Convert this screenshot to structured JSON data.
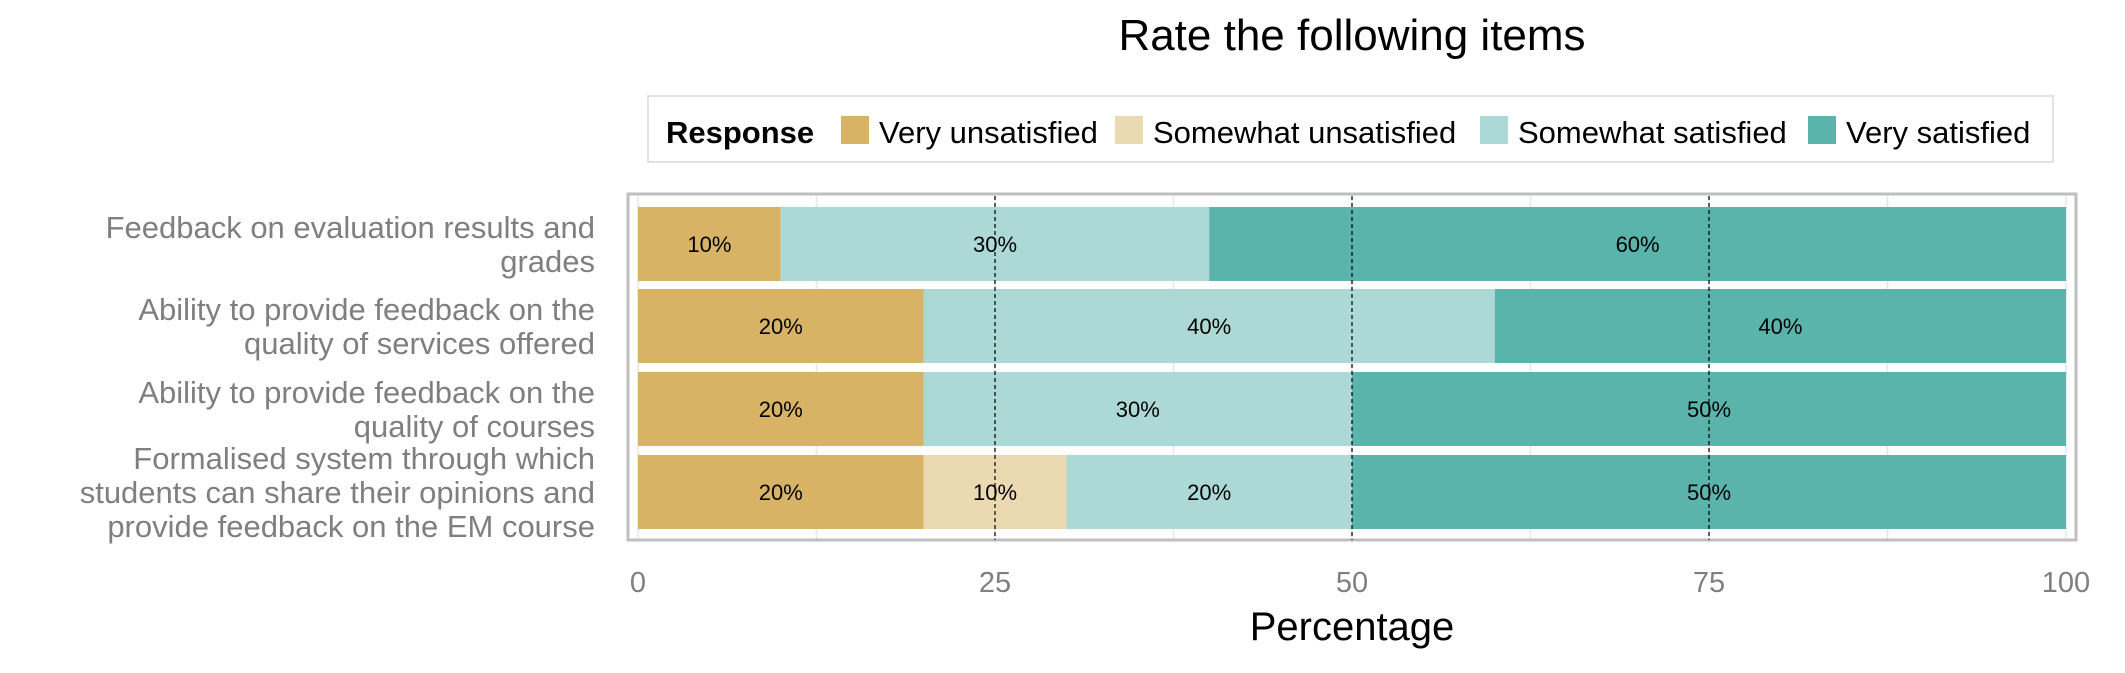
{
  "chart_data": {
    "type": "bar",
    "orientation": "horizontal",
    "stacked": true,
    "title": "Rate the following items",
    "xlabel": "Percentage",
    "ylabel": "",
    "xlim": [
      0,
      100
    ],
    "x_ticks": [
      "0",
      "25",
      "50",
      "75",
      "100"
    ],
    "legend_title": "Response",
    "legend_position": "top",
    "grid": true,
    "categories": [
      "Feedback on evaluation results and grades",
      "Ability to provide feedback on the quality of services offered",
      "Ability to provide feedback on the quality of courses",
      "Formalised system through which students can share their opinions and provide feedback on the EM course"
    ],
    "category_label_lines": [
      [
        "Feedback on evaluation results and",
        "grades"
      ],
      [
        "Ability to provide feedback on the",
        "quality of services offered"
      ],
      [
        "Ability to provide feedback on the",
        "quality of courses"
      ],
      [
        "Formalised system through which",
        "students can share their opinions and",
        "provide feedback on the EM course"
      ]
    ],
    "series": [
      {
        "name": "Very unsatisfied",
        "color": "#d8b365",
        "values": [
          10,
          20,
          20,
          20
        ]
      },
      {
        "name": "Somewhat unsatisfied",
        "color": "#ebd9b2",
        "values": [
          0,
          0,
          0,
          10
        ]
      },
      {
        "name": "Somewhat satisfied",
        "color": "#acd9d5",
        "values": [
          30,
          40,
          30,
          20
        ]
      },
      {
        "name": "Very satisfied",
        "color": "#5ab4ac",
        "values": [
          60,
          40,
          50,
          50
        ]
      }
    ]
  }
}
